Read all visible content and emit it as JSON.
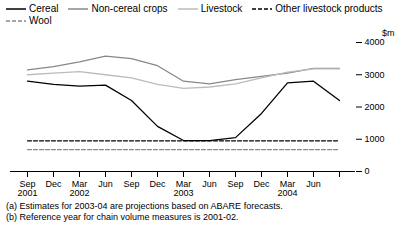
{
  "chart_data": {
    "type": "line",
    "ylabel": "$m",
    "categories": [
      "Sep\n2001",
      "Dec",
      "Mar\n2002",
      "Jun",
      "Sep",
      "Dec",
      "Mar\n2003",
      "Jun",
      "Sep",
      "Dec",
      "Mar\n2004",
      "Jun",
      null
    ],
    "series": [
      {
        "name": "Cereal",
        "color": "#000000",
        "line_style": "solid",
        "values": [
          2800,
          2700,
          2650,
          2680,
          2200,
          1400,
          960,
          960,
          1050,
          1800,
          2750,
          2800,
          2200
        ]
      },
      {
        "name": "Non-cereal crops",
        "color": "#888888",
        "line_style": "solid",
        "values": [
          3150,
          3250,
          3400,
          3580,
          3500,
          3280,
          2800,
          2720,
          2850,
          2950,
          3050,
          3200,
          3200
        ]
      },
      {
        "name": "Livestock",
        "color": "#bbbbbb",
        "line_style": "solid",
        "values": [
          3000,
          3050,
          3100,
          3000,
          2900,
          2700,
          2580,
          2620,
          2720,
          2900,
          3080,
          3180,
          3180
        ]
      },
      {
        "name": "Other livestock products",
        "color": "#000000",
        "line_style": "dashed",
        "values": [
          950,
          950,
          950,
          950,
          950,
          950,
          950,
          950,
          950,
          950,
          950,
          950,
          950
        ]
      },
      {
        "name": "Wool",
        "color": "#888888",
        "line_style": "dashed",
        "values": [
          680,
          680,
          680,
          680,
          680,
          680,
          680,
          680,
          680,
          680,
          680,
          680,
          680
        ]
      }
    ],
    "ylim": [
      0,
      4000
    ],
    "yticks": [
      0,
      1000,
      2000,
      3000,
      4000
    ],
    "grid": false,
    "legend": "top",
    "footnotes": [
      "(a) Estimates for 2003-04 are projections based on ABARE forecasts.",
      "(b) Reference year for chain volume measures is 2001-02."
    ]
  }
}
